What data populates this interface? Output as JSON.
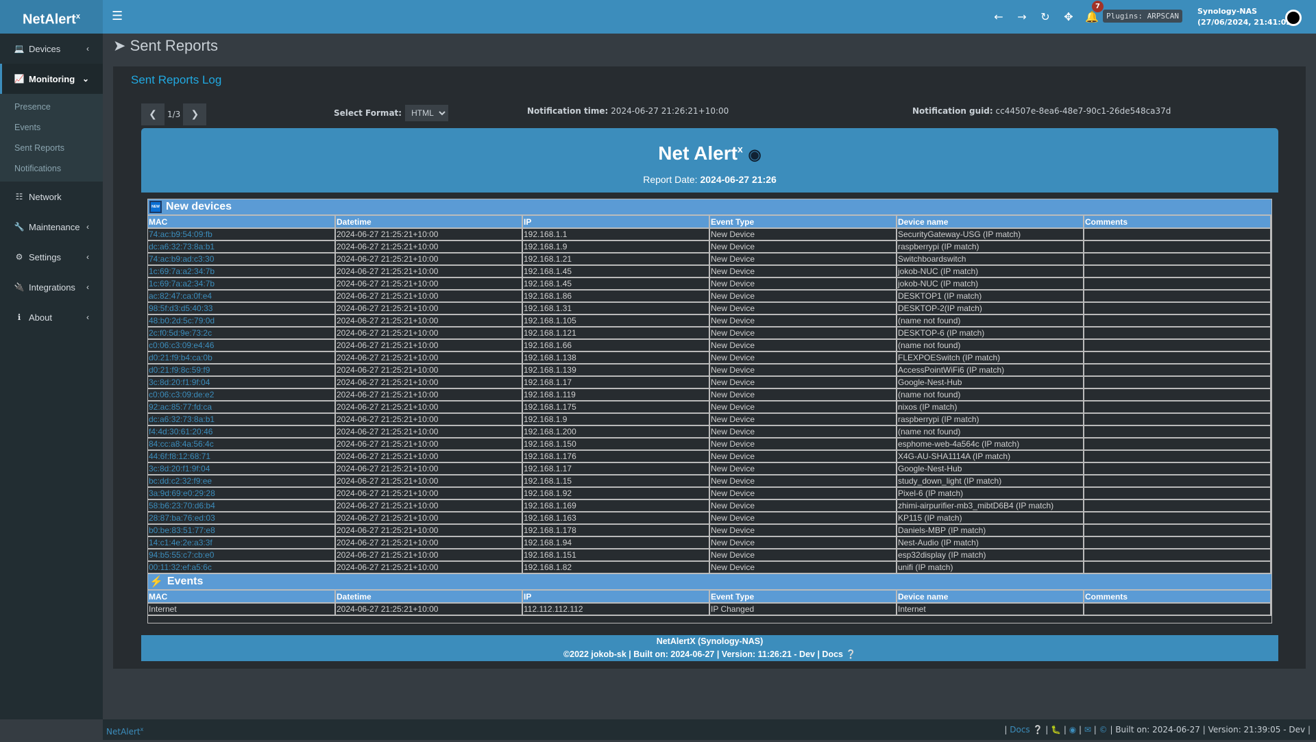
{
  "app": {
    "logo": "NetAlert",
    "logo_sup": "x"
  },
  "header": {
    "notifications_count": "7",
    "plugins": "Plugins: ARPSCAN",
    "host": "Synology-NAS",
    "datetime": "(27/06/2024, 21:41:02)"
  },
  "sidebar": {
    "items": [
      {
        "label": "Devices",
        "icon": "laptop-icon"
      },
      {
        "label": "Monitoring",
        "icon": "chart-icon",
        "active": true,
        "sub": [
          "Presence",
          "Events",
          "Sent Reports",
          "Notifications"
        ]
      },
      {
        "label": "Network",
        "icon": "sitemap-icon"
      },
      {
        "label": "Maintenance",
        "icon": "wrench-icon"
      },
      {
        "label": "Settings",
        "icon": "gear-icon"
      },
      {
        "label": "Integrations",
        "icon": "plug-icon"
      },
      {
        "label": "About",
        "icon": "info-icon"
      }
    ]
  },
  "page": {
    "title": "Sent Reports",
    "box_title": "Sent Reports Log",
    "page_indicator": "1/3",
    "format_label": "Select Format:",
    "format_value": "HTML",
    "ntime_label": "Notification time:",
    "ntime_value": "2024-06-27 21:26:21+10:00",
    "nguid_label": "Notification guid:",
    "nguid_value": "cc44507e-8ea6-48e7-90c1-26de548ca37d"
  },
  "report": {
    "title": "Net Alert",
    "title_sup": "x",
    "date_label": "Report Date:",
    "date_value": "2024-06-27 21:26",
    "columns": [
      "MAC",
      "Datetime",
      "IP",
      "Event Type",
      "Device name",
      "Comments"
    ],
    "new_devices": {
      "title": "New devices",
      "rows": [
        [
          "74:ac:b9:54:09:fb",
          "2024-06-27 21:25:21+10:00",
          "192.168.1.1",
          "New Device",
          "SecurityGateway-USG (IP match)",
          ""
        ],
        [
          "dc:a6:32:73:8a:b1",
          "2024-06-27 21:25:21+10:00",
          "192.168.1.9",
          "New Device",
          "raspberrypi (IP match)",
          ""
        ],
        [
          "74:ac:b9:ad:c3:30",
          "2024-06-27 21:25:21+10:00",
          "192.168.1.21",
          "New Device",
          "Switchboardswitch",
          ""
        ],
        [
          "1c:69:7a:a2:34:7b",
          "2024-06-27 21:25:21+10:00",
          "192.168.1.45",
          "New Device",
          "jokob-NUC (IP match)",
          ""
        ],
        [
          "1c:69:7a:a2:34:7b",
          "2024-06-27 21:25:21+10:00",
          "192.168.1.45",
          "New Device",
          "jokob-NUC (IP match)",
          ""
        ],
        [
          "ac:82:47:ca:0f:e4",
          "2024-06-27 21:25:21+10:00",
          "192.168.1.86",
          "New Device",
          "DESKTOP1 (IP match)",
          ""
        ],
        [
          "98:5f:d3:d5:40:33",
          "2024-06-27 21:25:21+10:00",
          "192.168.1.31",
          "New Device",
          "DESKTOP-2(IP match)",
          ""
        ],
        [
          "48:b0:2d:5c:79:0d",
          "2024-06-27 21:25:21+10:00",
          "192.168.1.105",
          "New Device",
          "(name not found)",
          ""
        ],
        [
          "2c:f0:5d:9e:73:2c",
          "2024-06-27 21:25:21+10:00",
          "192.168.1.121",
          "New Device",
          "DESKTOP-6 (IP match)",
          ""
        ],
        [
          "c0:06:c3:09:e4:46",
          "2024-06-27 21:25:21+10:00",
          "192.168.1.66",
          "New Device",
          "(name not found)",
          ""
        ],
        [
          "d0:21:f9:b4:ca:0b",
          "2024-06-27 21:25:21+10:00",
          "192.168.1.138",
          "New Device",
          "FLEXPOESwitch (IP match)",
          ""
        ],
        [
          "d0:21:f9:8c:59:f9",
          "2024-06-27 21:25:21+10:00",
          "192.168.1.139",
          "New Device",
          "AccessPointWiFi6 (IP match)",
          ""
        ],
        [
          "3c:8d:20:f1:9f:04",
          "2024-06-27 21:25:21+10:00",
          "192.168.1.17",
          "New Device",
          "Google-Nest-Hub",
          ""
        ],
        [
          "c0:06:c3:09:de:e2",
          "2024-06-27 21:25:21+10:00",
          "192.168.1.119",
          "New Device",
          "(name not found)",
          ""
        ],
        [
          "92:ac:85:77:fd:ca",
          "2024-06-27 21:25:21+10:00",
          "192.168.1.175",
          "New Device",
          "nixos (IP match)",
          ""
        ],
        [
          "dc:a6:32:73:8a:b1",
          "2024-06-27 21:25:21+10:00",
          "192.168.1.9",
          "New Device",
          "raspberrypi (IP match)",
          ""
        ],
        [
          "f4:4d:30:61:20:46",
          "2024-06-27 21:25:21+10:00",
          "192.168.1.200",
          "New Device",
          "(name not found)",
          ""
        ],
        [
          "84:cc:a8:4a:56:4c",
          "2024-06-27 21:25:21+10:00",
          "192.168.1.150",
          "New Device",
          "esphome-web-4a564c (IP match)",
          ""
        ],
        [
          "44:6f:f8:12:68:71",
          "2024-06-27 21:25:21+10:00",
          "192.168.1.176",
          "New Device",
          "X4G-AU-SHA1114A (IP match)",
          ""
        ],
        [
          "3c:8d:20:f1:9f:04",
          "2024-06-27 21:25:21+10:00",
          "192.168.1.17",
          "New Device",
          "Google-Nest-Hub",
          ""
        ],
        [
          "bc:dd:c2:32:f9:ee",
          "2024-06-27 21:25:21+10:00",
          "192.168.1.15",
          "New Device",
          "study_down_light (IP match)",
          ""
        ],
        [
          "3a:9d:69:e0:29:28",
          "2024-06-27 21:25:21+10:00",
          "192.168.1.92",
          "New Device",
          "Pixel-6 (IP match)",
          ""
        ],
        [
          "58:b6:23:70:d6:b4",
          "2024-06-27 21:25:21+10:00",
          "192.168.1.169",
          "New Device",
          "zhimi-airpurifier-mb3_mibtD6B4 (IP match)",
          ""
        ],
        [
          "28:87:ba:76:ed:03",
          "2024-06-27 21:25:21+10:00",
          "192.168.1.163",
          "New Device",
          "KP115 (IP match)",
          ""
        ],
        [
          "b0:be:83:51:77:e8",
          "2024-06-27 21:25:21+10:00",
          "192.168.1.178",
          "New Device",
          "Daniels-MBP (IP match)",
          ""
        ],
        [
          "14:c1:4e:2e:a3:3f",
          "2024-06-27 21:25:21+10:00",
          "192.168.1.94",
          "New Device",
          "Nest-Audio (IP match)",
          ""
        ],
        [
          "94:b5:55:c7:cb:e0",
          "2024-06-27 21:25:21+10:00",
          "192.168.1.151",
          "New Device",
          "esp32display (IP match)",
          ""
        ],
        [
          "00:11:32:ef:a5:6c",
          "2024-06-27 21:25:21+10:00",
          "192.168.1.82",
          "New Device",
          "unifi (IP match)",
          ""
        ]
      ]
    },
    "events": {
      "title": "Events",
      "rows": [
        [
          "Internet",
          "2024-06-27 21:25:21+10:00",
          "112.112.112.112",
          "IP Changed",
          "Internet",
          ""
        ]
      ]
    },
    "footer_line1": "NetAlertX (Synology-NAS)",
    "footer_line2": "©2022 jokob-sk | Built on: 2024-06-27 | Version: 11:26:21 - Dev | Docs"
  },
  "bottom": {
    "brand": "NetAlert",
    "brand_sup": "x",
    "docs": "Docs",
    "built": "| Built on: 2024-06-27 | Version: 21:39:05 - Dev |"
  }
}
